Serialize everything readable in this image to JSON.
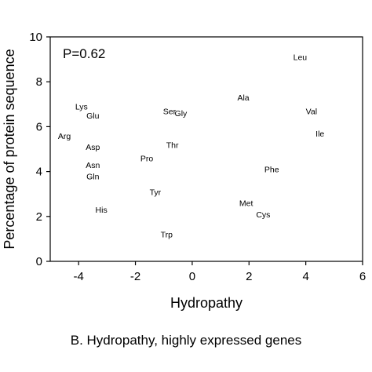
{
  "chart_data": {
    "type": "scatter",
    "title": "",
    "xlabel": "Hydropathy",
    "ylabel": "Percentage of protein sequence",
    "xlim": [
      -5,
      6
    ],
    "ylim": [
      0,
      10
    ],
    "xticks": [
      -4,
      -2,
      0,
      2,
      4,
      6
    ],
    "yticks": [
      0,
      2,
      4,
      6,
      8,
      10
    ],
    "grid": false,
    "annotation": "P=0.62",
    "points": [
      {
        "label": "Leu",
        "x": 3.8,
        "y": 9.1
      },
      {
        "label": "Ala",
        "x": 1.8,
        "y": 7.3
      },
      {
        "label": "Val",
        "x": 4.2,
        "y": 6.7
      },
      {
        "label": "Ile",
        "x": 4.5,
        "y": 5.7
      },
      {
        "label": "Lys",
        "x": -3.9,
        "y": 6.9
      },
      {
        "label": "Glu",
        "x": -3.5,
        "y": 6.5
      },
      {
        "label": "Ser",
        "x": -0.8,
        "y": 6.7
      },
      {
        "label": "Gly",
        "x": -0.4,
        "y": 6.6
      },
      {
        "label": "Arg",
        "x": -4.5,
        "y": 5.6
      },
      {
        "label": "Asp",
        "x": -3.5,
        "y": 5.1
      },
      {
        "label": "Thr",
        "x": -0.7,
        "y": 5.2
      },
      {
        "label": "Pro",
        "x": -1.6,
        "y": 4.6
      },
      {
        "label": "Asn",
        "x": -3.5,
        "y": 4.3
      },
      {
        "label": "Gln",
        "x": -3.5,
        "y": 3.8
      },
      {
        "label": "Phe",
        "x": 2.8,
        "y": 4.1
      },
      {
        "label": "Tyr",
        "x": -1.3,
        "y": 3.1
      },
      {
        "label": "Met",
        "x": 1.9,
        "y": 2.6
      },
      {
        "label": "Cys",
        "x": 2.5,
        "y": 2.1
      },
      {
        "label": "His",
        "x": -3.2,
        "y": 2.3
      },
      {
        "label": "Trp",
        "x": -0.9,
        "y": 1.2
      }
    ]
  },
  "caption": "B. Hydropathy, highly expressed genes"
}
